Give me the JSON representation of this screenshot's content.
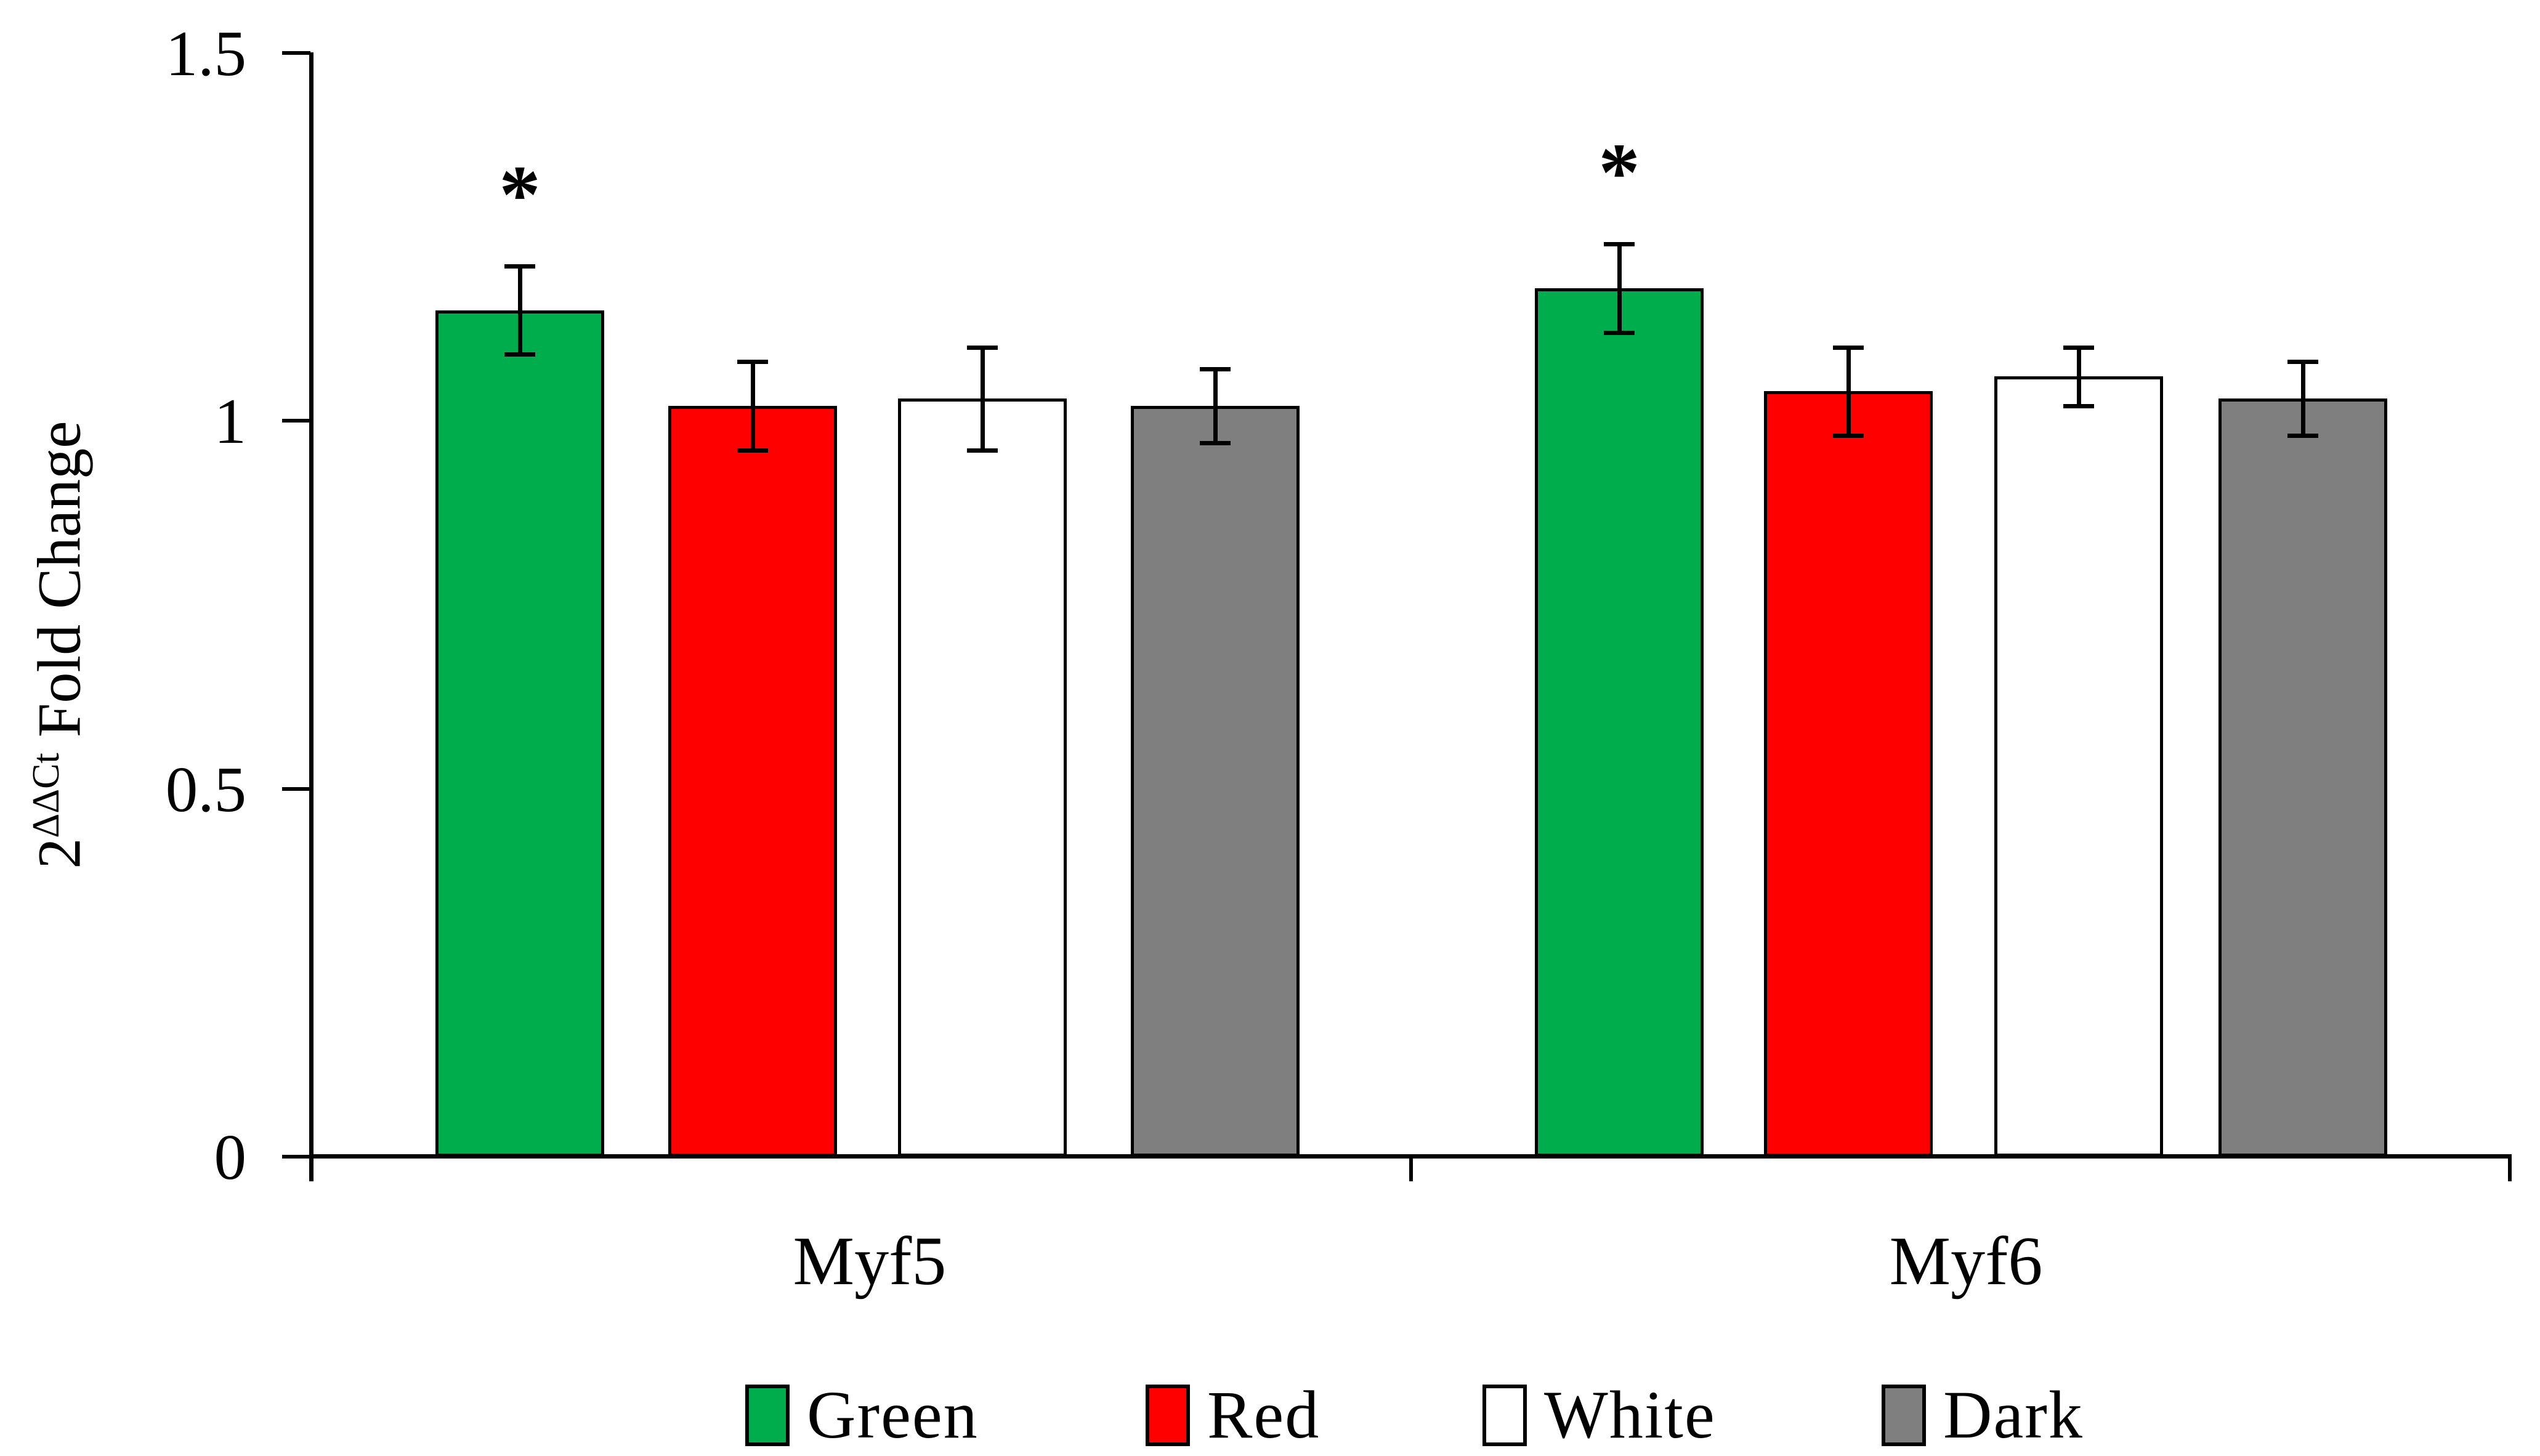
{
  "figure_type": "bar-chart",
  "background": "#ffffff",
  "y_axis": {
    "title_prefix": "2",
    "title_superscript": "ΔΔCt",
    "title_suffix": " Fold Change",
    "ticks": [
      {
        "label": "1.5",
        "value": 1.5
      },
      {
        "label": "1",
        "value": 1
      },
      {
        "label": "0.5",
        "value": 0.5
      },
      {
        "label": "0",
        "value": 0
      }
    ],
    "range": [
      0,
      1.5
    ]
  },
  "x_axis": {
    "categories": [
      "Myf5",
      "Myf6"
    ]
  },
  "legend": {
    "position": "bottom",
    "items": [
      {
        "label": "Green",
        "color": "#00AD4C"
      },
      {
        "label": "Red",
        "color": "#FF0000"
      },
      {
        "label": "White",
        "color": "#FFFFFF"
      },
      {
        "label": "Dark",
        "color": "#7F7F7F"
      }
    ]
  },
  "significance_marker": "*",
  "chart_data": {
    "type": "bar",
    "categories": [
      "Myf5",
      "Myf6"
    ],
    "series": [
      {
        "name": "Green",
        "color": "#00AD4C",
        "values": [
          1.15,
          1.18
        ],
        "errors": [
          0.06,
          0.06
        ],
        "significant": [
          true,
          true
        ]
      },
      {
        "name": "Red",
        "color": "#FF0000",
        "values": [
          1.02,
          1.04
        ],
        "errors": [
          0.06,
          0.06
        ],
        "significant": [
          false,
          false
        ]
      },
      {
        "name": "White",
        "color": "#FFFFFF",
        "values": [
          1.03,
          1.06
        ],
        "errors": [
          0.07,
          0.04
        ],
        "significant": [
          false,
          false
        ]
      },
      {
        "name": "Dark",
        "color": "#7F7F7F",
        "values": [
          1.02,
          1.03
        ],
        "errors": [
          0.05,
          0.05
        ],
        "significant": [
          false,
          false
        ]
      }
    ],
    "title": "",
    "xlabel": "",
    "ylabel": "2^ΔΔCt Fold Change",
    "ylim": [
      0,
      1.5
    ],
    "yticks": [
      0,
      0.5,
      1,
      1.5
    ],
    "grid": false,
    "error_bars": true,
    "legend_position": "bottom"
  }
}
